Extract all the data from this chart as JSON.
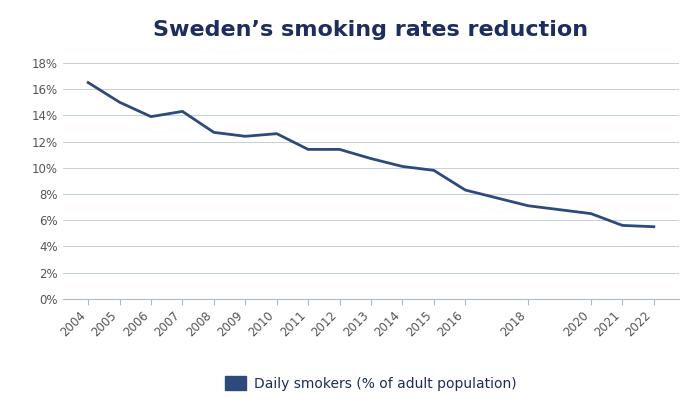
{
  "title": "Sweden’s smoking rates reduction",
  "years": [
    2004,
    2005,
    2006,
    2007,
    2008,
    2009,
    2010,
    2011,
    2012,
    2013,
    2014,
    2015,
    2016,
    2018,
    2020,
    2021,
    2022
  ],
  "values": [
    0.165,
    0.15,
    0.139,
    0.143,
    0.127,
    0.124,
    0.126,
    0.114,
    0.114,
    0.107,
    0.101,
    0.098,
    0.083,
    0.071,
    0.065,
    0.056,
    0.055
  ],
  "line_color": "#2E4A7A",
  "line_width": 2.0,
  "ylim": [
    0,
    0.19
  ],
  "yticks": [
    0,
    0.02,
    0.04,
    0.06,
    0.08,
    0.1,
    0.12,
    0.14,
    0.16,
    0.18
  ],
  "grid_color": "#B8C8D8",
  "background_color": "#FFFFFF",
  "title_fontsize": 16,
  "title_color": "#1C2D5E",
  "legend_label": "Daily smokers (% of adult population)",
  "legend_color": "#2E4A7A",
  "tick_color": "#555555",
  "spine_color": "#AABBC8"
}
